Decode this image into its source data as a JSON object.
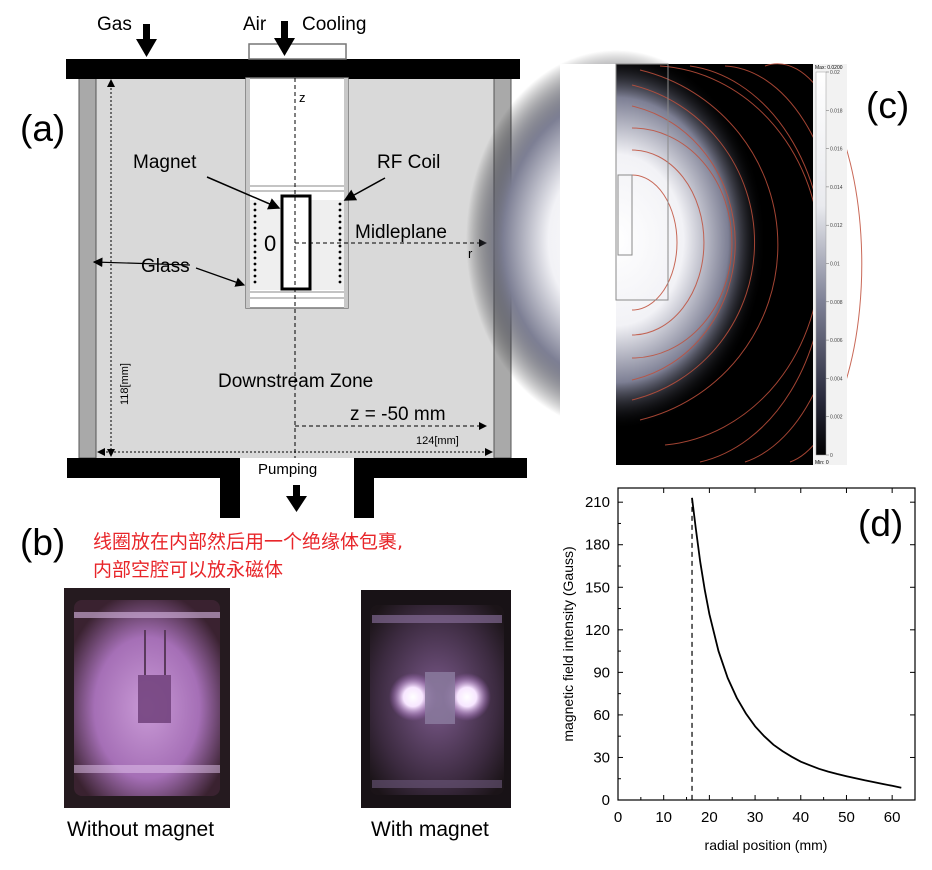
{
  "panel_labels": {
    "a": "(a)",
    "b": "(b)",
    "c": "(c)",
    "d": "(d)"
  },
  "schematic": {
    "labels": {
      "gas": "Gas",
      "air": "Air",
      "cooling": "Cooling",
      "z_axis": "z",
      "magnet": "Magnet",
      "rf_coil": "RF Coil",
      "origin": "0",
      "midplane": "Midleplane",
      "r_axis": "r",
      "glass": "Glass",
      "height_dim": "118[mm]",
      "downstream": "Downstream Zone",
      "z_position": "z = -50 mm",
      "width_dim": "124[mm]",
      "pumping": "Pumping"
    }
  },
  "note": {
    "line1": "线圈放在内部然后用一个绝缘体包裹,",
    "line2": "内部空腔可以放永磁体"
  },
  "photos": {
    "left_caption": "Without magnet",
    "right_caption": "With magnet"
  },
  "colorbar": {
    "max_label": "Max: 0.0200",
    "min_label": "Min: 0",
    "ticks": [
      "0.02",
      "0.018",
      "0.016",
      "0.014",
      "0.012",
      "0.01",
      "0.008",
      "0.006",
      "0.004",
      "0.002",
      "0"
    ]
  },
  "chart_data": {
    "type": "line",
    "xlabel": "radial position (mm)",
    "ylabel": "magnetic field intensity (Gauss)",
    "xlim": [
      0,
      65
    ],
    "ylim": [
      0,
      220
    ],
    "xticks": [
      0,
      10,
      20,
      30,
      40,
      50,
      60
    ],
    "yticks": [
      0,
      30,
      60,
      90,
      120,
      150,
      180,
      210
    ],
    "grid": false,
    "series": [
      {
        "x": [
          16.2,
          17,
          18,
          19,
          20,
          22,
          24,
          26,
          28,
          30,
          32,
          34,
          36,
          38,
          40,
          42,
          44,
          46,
          48,
          50,
          52,
          54,
          56,
          58,
          60,
          62
        ],
        "values": [
          213,
          192,
          168,
          148,
          131,
          105,
          86,
          72,
          61,
          52,
          45,
          39,
          34.5,
          30.5,
          27,
          24.5,
          22,
          20,
          18.3,
          16.8,
          15.3,
          13.9,
          12.6,
          11.3,
          10,
          8.7
        ]
      }
    ],
    "vline_x": 16.2
  }
}
